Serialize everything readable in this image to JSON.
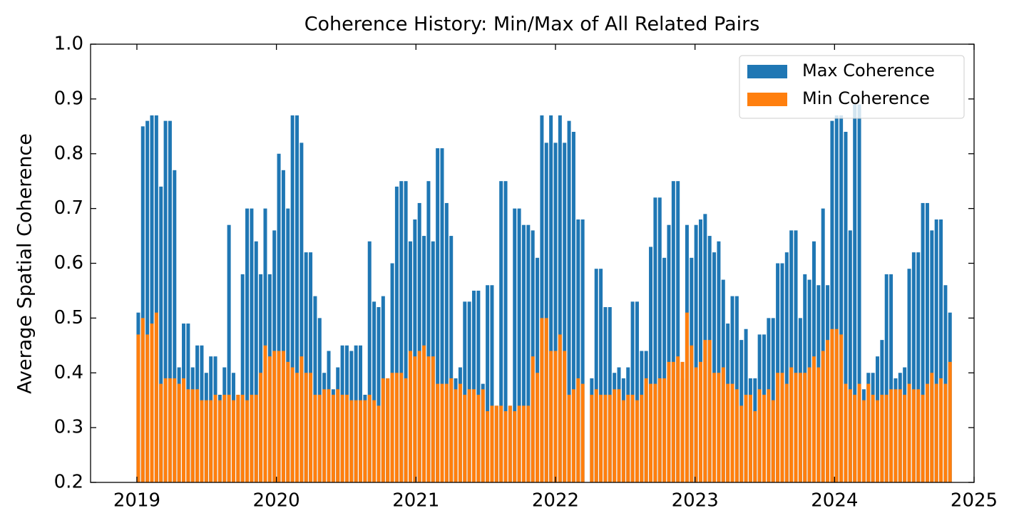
{
  "chart_data": {
    "type": "bar",
    "title": "Coherence History: Min/Max of All Related Pairs",
    "y_label": "Average Spatial Coherence",
    "x": [
      2019.01,
      2019.0425,
      2019.075,
      2019.1075,
      2019.14,
      2019.1725,
      2019.205,
      2019.2375,
      2019.27,
      2019.3025,
      2019.335,
      2019.3675,
      2019.4,
      2019.4325,
      2019.465,
      2019.4975,
      2019.53,
      2019.5625,
      2019.595,
      2019.6275,
      2019.66,
      2019.6925,
      2019.725,
      2019.7575,
      2019.79,
      2019.8225,
      2019.855,
      2019.8875,
      2019.92,
      2019.9525,
      2019.985,
      2020.0175,
      2020.05,
      2020.0825,
      2020.115,
      2020.1475,
      2020.18,
      2020.2125,
      2020.245,
      2020.2775,
      2020.31,
      2020.3425,
      2020.375,
      2020.4075,
      2020.44,
      2020.4725,
      2020.505,
      2020.5375,
      2020.57,
      2020.6025,
      2020.635,
      2020.6675,
      2020.7,
      2020.7325,
      2020.765,
      2020.7975,
      2020.83,
      2020.8625,
      2020.895,
      2020.9275,
      2020.96,
      2020.9925,
      2021.025,
      2021.0575,
      2021.09,
      2021.1225,
      2021.155,
      2021.1875,
      2021.22,
      2021.2525,
      2021.285,
      2021.3175,
      2021.35,
      2021.3825,
      2021.415,
      2021.4475,
      2021.48,
      2021.5125,
      2021.545,
      2021.5775,
      2021.61,
      2021.6425,
      2021.675,
      2021.7075,
      2021.74,
      2021.7725,
      2021.805,
      2021.8375,
      2021.87,
      2021.9025,
      2021.935,
      2021.9675,
      2022.0,
      2022.0325,
      2022.065,
      2022.0975,
      2022.13,
      2022.1625,
      2022.195,
      2022.26,
      2022.2925,
      2022.325,
      2022.3575,
      2022.39,
      2022.4225,
      2022.455,
      2022.4875,
      2022.52,
      2022.5525,
      2022.585,
      2022.6175,
      2022.65,
      2022.6825,
      2022.715,
      2022.7475,
      2022.78,
      2022.8125,
      2022.845,
      2022.8775,
      2022.91,
      2022.9425,
      2022.975,
      2023.0075,
      2023.04,
      2023.0725,
      2023.105,
      2023.1375,
      2023.17,
      2023.2025,
      2023.235,
      2023.2675,
      2023.3,
      2023.3325,
      2023.365,
      2023.3975,
      2023.43,
      2023.4625,
      2023.495,
      2023.5275,
      2023.56,
      2023.5925,
      2023.625,
      2023.6575,
      2023.69,
      2023.7225,
      2023.755,
      2023.7875,
      2023.82,
      2023.8525,
      2023.885,
      2023.9175,
      2023.95,
      2023.9825,
      2024.015,
      2024.0475,
      2024.08,
      2024.1125,
      2024.145,
      2024.1775,
      2024.21,
      2024.2425,
      2024.275,
      2024.3075,
      2024.34,
      2024.3725,
      2024.405,
      2024.4375,
      2024.47,
      2024.5025,
      2024.535,
      2024.5675,
      2024.6,
      2024.6325,
      2024.665,
      2024.6975,
      2024.73,
      2024.7625,
      2024.795,
      2024.8275
    ],
    "series": [
      {
        "name": "Max Coherence",
        "color": "#1f77b4",
        "values": [
          0.51,
          0.85,
          0.86,
          0.87,
          0.87,
          0.74,
          0.86,
          0.86,
          0.77,
          0.41,
          0.49,
          0.49,
          0.41,
          0.45,
          0.45,
          0.4,
          0.43,
          0.43,
          0.36,
          0.41,
          0.67,
          0.4,
          0.36,
          0.58,
          0.7,
          0.7,
          0.64,
          0.58,
          0.7,
          0.58,
          0.66,
          0.8,
          0.77,
          0.7,
          0.87,
          0.87,
          0.82,
          0.62,
          0.62,
          0.54,
          0.5,
          0.4,
          0.44,
          0.37,
          0.41,
          0.45,
          0.45,
          0.44,
          0.45,
          0.45,
          0.36,
          0.64,
          0.53,
          0.52,
          0.54,
          0.39,
          0.6,
          0.74,
          0.75,
          0.75,
          0.64,
          0.68,
          0.71,
          0.65,
          0.75,
          0.64,
          0.81,
          0.81,
          0.71,
          0.65,
          0.39,
          0.41,
          0.53,
          0.53,
          0.55,
          0.55,
          0.38,
          0.56,
          0.56,
          0.34,
          0.75,
          0.75,
          0.34,
          0.7,
          0.7,
          0.67,
          0.67,
          0.66,
          0.61,
          0.87,
          0.82,
          0.87,
          0.82,
          0.87,
          0.82,
          0.86,
          0.84,
          0.68,
          0.68,
          0.39,
          0.59,
          0.59,
          0.52,
          0.52,
          0.4,
          0.41,
          0.39,
          0.41,
          0.53,
          0.53,
          0.44,
          0.44,
          0.63,
          0.72,
          0.72,
          0.61,
          0.67,
          0.75,
          0.75,
          0.39,
          0.67,
          0.61,
          0.67,
          0.68,
          0.69,
          0.65,
          0.62,
          0.64,
          0.57,
          0.49,
          0.54,
          0.54,
          0.46,
          0.48,
          0.39,
          0.39,
          0.47,
          0.47,
          0.5,
          0.5,
          0.6,
          0.6,
          0.62,
          0.66,
          0.66,
          0.5,
          0.58,
          0.57,
          0.64,
          0.56,
          0.7,
          0.56,
          0.86,
          0.87,
          0.87,
          0.84,
          0.66,
          0.89,
          0.89,
          0.37,
          0.4,
          0.4,
          0.43,
          0.46,
          0.58,
          0.58,
          0.39,
          0.4,
          0.41,
          0.59,
          0.62,
          0.62,
          0.71,
          0.71,
          0.66,
          0.68,
          0.68,
          0.56,
          0.51
        ]
      },
      {
        "name": "Min Coherence",
        "color": "#ff7f0e",
        "values": [
          0.47,
          0.5,
          0.47,
          0.49,
          0.51,
          0.38,
          0.39,
          0.39,
          0.39,
          0.38,
          0.39,
          0.37,
          0.37,
          0.37,
          0.35,
          0.35,
          0.35,
          0.36,
          0.35,
          0.36,
          0.36,
          0.35,
          0.36,
          0.36,
          0.35,
          0.36,
          0.36,
          0.4,
          0.45,
          0.43,
          0.44,
          0.44,
          0.44,
          0.42,
          0.41,
          0.4,
          0.43,
          0.4,
          0.4,
          0.36,
          0.36,
          0.37,
          0.37,
          0.36,
          0.37,
          0.36,
          0.36,
          0.35,
          0.35,
          0.35,
          0.35,
          0.36,
          0.35,
          0.34,
          0.39,
          0.39,
          0.4,
          0.4,
          0.4,
          0.39,
          0.44,
          0.43,
          0.44,
          0.45,
          0.43,
          0.43,
          0.38,
          0.38,
          0.38,
          0.39,
          0.37,
          0.38,
          0.36,
          0.37,
          0.37,
          0.36,
          0.37,
          0.33,
          0.34,
          0.34,
          0.34,
          0.33,
          0.34,
          0.33,
          0.34,
          0.34,
          0.34,
          0.43,
          0.4,
          0.5,
          0.5,
          0.44,
          0.44,
          0.47,
          0.44,
          0.36,
          0.37,
          0.39,
          0.38,
          0.36,
          0.37,
          0.36,
          0.36,
          0.36,
          0.37,
          0.37,
          0.35,
          0.36,
          0.36,
          0.35,
          0.36,
          0.39,
          0.38,
          0.38,
          0.39,
          0.39,
          0.42,
          0.42,
          0.43,
          0.42,
          0.51,
          0.45,
          0.41,
          0.42,
          0.46,
          0.46,
          0.4,
          0.4,
          0.41,
          0.38,
          0.38,
          0.37,
          0.34,
          0.36,
          0.36,
          0.33,
          0.37,
          0.36,
          0.37,
          0.35,
          0.4,
          0.4,
          0.38,
          0.41,
          0.4,
          0.4,
          0.4,
          0.41,
          0.43,
          0.41,
          0.44,
          0.46,
          0.48,
          0.48,
          0.47,
          0.38,
          0.37,
          0.36,
          0.38,
          0.35,
          0.38,
          0.36,
          0.35,
          0.36,
          0.36,
          0.37,
          0.37,
          0.37,
          0.36,
          0.38,
          0.37,
          0.37,
          0.36,
          0.38,
          0.4,
          0.38,
          0.39,
          0.38,
          0.42
        ]
      }
    ],
    "xlim": [
      2018.668,
      2025
    ],
    "xticks": [
      2019,
      2020,
      2021,
      2022,
      2023,
      2024,
      2025
    ],
    "ylim": [
      0.2,
      1.0
    ],
    "yticks": [
      0.2,
      0.3,
      0.4,
      0.5,
      0.6,
      0.7,
      0.8,
      0.9,
      {
        "value": 1.0,
        "label": "1.0"
      }
    ],
    "legend": "upper right"
  }
}
